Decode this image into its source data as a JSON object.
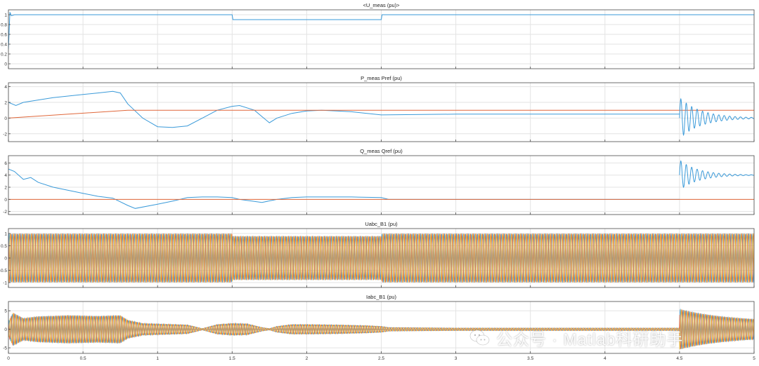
{
  "chart_data": [
    {
      "type": "line",
      "title": "<U_meas (pu)>",
      "ylim": [
        -0.1,
        1.1
      ],
      "yticks": [
        0,
        0.2,
        0.4,
        0.6,
        0.8,
        1
      ],
      "ytick_labels": [
        "0",
        "0.2",
        "0.4",
        "0.6",
        "0.8",
        "1"
      ],
      "xlim": [
        0,
        5
      ],
      "grid": true,
      "series": [
        {
          "color": "#3a9ad9",
          "x": [
            0,
            0.01,
            0.02,
            0.04,
            1.5,
            1.505,
            2.5,
            2.505,
            5
          ],
          "y": [
            0.3,
            1.05,
            0.98,
            1.0,
            1.0,
            0.9,
            0.9,
            1.0,
            1.0
          ]
        }
      ]
    },
    {
      "type": "line",
      "title": "P_meas  Pref (pu)",
      "ylim": [
        -3,
        4.5
      ],
      "yticks": [
        -2,
        0,
        2,
        4
      ],
      "ytick_labels": [
        "-2",
        "0",
        "2",
        "4"
      ],
      "xlim": [
        0,
        5
      ],
      "grid": true,
      "series": [
        {
          "color": "#3a9ad9",
          "x": [
            0,
            0.05,
            0.1,
            0.2,
            0.3,
            0.4,
            0.5,
            0.6,
            0.7,
            0.75,
            0.8,
            0.9,
            1.0,
            1.1,
            1.2,
            1.3,
            1.4,
            1.5,
            1.55,
            1.65,
            1.7,
            1.75,
            1.8,
            1.9,
            2.0,
            2.1,
            2.2,
            2.3,
            2.5,
            3.0,
            3.5,
            4.0,
            4.5
          ],
          "y": [
            2.0,
            1.6,
            2.0,
            2.3,
            2.6,
            2.8,
            3.0,
            3.2,
            3.4,
            3.2,
            1.8,
            0.0,
            -1.1,
            -1.2,
            -1.0,
            0.0,
            1.0,
            1.5,
            1.6,
            1.0,
            0.2,
            -0.6,
            0.0,
            0.6,
            0.9,
            1.0,
            0.9,
            0.8,
            0.4,
            0.5,
            0.5,
            0.5,
            0.5
          ]
        },
        {
          "color": "#e0673a",
          "x": [
            0,
            0.8,
            5
          ],
          "y": [
            0,
            1.0,
            1.0
          ]
        }
      ],
      "oscillation": {
        "t0": 4.5,
        "t1": 5,
        "base": 0,
        "amp": 2.6,
        "decay": 7,
        "freq": 50
      }
    },
    {
      "type": "line",
      "title": "Q_meas  Qref (pu)",
      "ylim": [
        -2.5,
        7.2
      ],
      "yticks": [
        -2,
        0,
        2,
        4,
        6
      ],
      "ytick_labels": [
        "-2",
        "0",
        "2",
        "4",
        "6"
      ],
      "xlim": [
        0,
        5
      ],
      "grid": true,
      "series": [
        {
          "color": "#3a9ad9",
          "x": [
            0,
            0.04,
            0.1,
            0.15,
            0.2,
            0.3,
            0.4,
            0.5,
            0.6,
            0.7,
            0.8,
            0.85,
            1.0,
            1.1,
            1.2,
            1.3,
            1.4,
            1.5,
            1.55,
            1.7,
            1.8,
            1.9,
            2.0,
            2.3,
            2.5,
            2.55,
            3.0,
            4.5
          ],
          "y": [
            5.0,
            4.6,
            3.3,
            3.6,
            2.8,
            2.0,
            1.5,
            1.0,
            0.5,
            0.2,
            -1.0,
            -1.5,
            -0.8,
            -0.3,
            0.3,
            0.4,
            0.4,
            0.3,
            0.0,
            -0.5,
            0.0,
            0.3,
            0.4,
            0.4,
            0.3,
            0.0,
            0.0,
            0.0
          ]
        },
        {
          "color": "#e0673a",
          "x": [
            0,
            5
          ],
          "y": [
            0,
            0
          ]
        }
      ],
      "oscillation": {
        "t0": 4.5,
        "t1": 5,
        "base": 4.0,
        "amp": 2.5,
        "decay": 8,
        "freq": 50
      }
    },
    {
      "type": "line",
      "title": "Uabc_B1  (pu)",
      "ylim": [
        -1.2,
        1.2
      ],
      "yticks": [
        -1,
        -0.5,
        0,
        0.5,
        1
      ],
      "ytick_labels": [
        "-1",
        "-0.5",
        "0",
        "0.5",
        "1"
      ],
      "xlim": [
        0,
        5
      ],
      "grid": true,
      "phases": [
        "#3a9ad9",
        "#e0673a",
        "#e8b030"
      ],
      "envelope": {
        "x": [
          0,
          1.5,
          1.505,
          2.5,
          2.505,
          5
        ],
        "amp": [
          1.0,
          1.0,
          0.9,
          0.9,
          1.0,
          1.0
        ]
      }
    },
    {
      "type": "line",
      "title": "Iabc_B1  (pu)",
      "ylim": [
        -6.5,
        7.5
      ],
      "yticks": [
        -5,
        0,
        5
      ],
      "ytick_labels": [
        "-5",
        "0",
        "5"
      ],
      "xlim": [
        0,
        5
      ],
      "grid": true,
      "phases": [
        "#3a9ad9",
        "#e0673a",
        "#e8b030"
      ],
      "envelope": {
        "x": [
          0,
          0.03,
          0.1,
          0.2,
          0.4,
          0.6,
          0.75,
          0.8,
          0.9,
          1.2,
          1.3,
          1.4,
          1.5,
          1.6,
          1.7,
          1.75,
          1.8,
          1.9,
          2.0,
          2.2,
          2.4,
          2.5,
          2.55,
          3.0,
          4.5
        ],
        "amp": [
          2.0,
          4.5,
          3.0,
          3.5,
          3.8,
          3.6,
          3.8,
          2.5,
          1.6,
          1.2,
          0.2,
          1.3,
          1.6,
          1.5,
          0.5,
          0.2,
          0.8,
          1.3,
          1.3,
          1.2,
          1.0,
          0.8,
          0.5,
          0.35,
          0.35
        ]
      },
      "oscillation": {
        "t0": 4.5,
        "t1": 5,
        "amp": 5.5,
        "decay": 3,
        "floor": 2.0
      }
    }
  ],
  "x_ticks": [
    0,
    0.5,
    1,
    1.5,
    2,
    2.5,
    3,
    3.5,
    4,
    4.5,
    5
  ],
  "x_tick_labels": [
    "0",
    "0.5",
    "1",
    "1.5",
    "2",
    "2.5",
    "3",
    "3.5",
    "4",
    "4.5",
    "5"
  ],
  "watermark": {
    "text": "公众号 · Matlab科研助手",
    "icon": "wechat-icon"
  }
}
